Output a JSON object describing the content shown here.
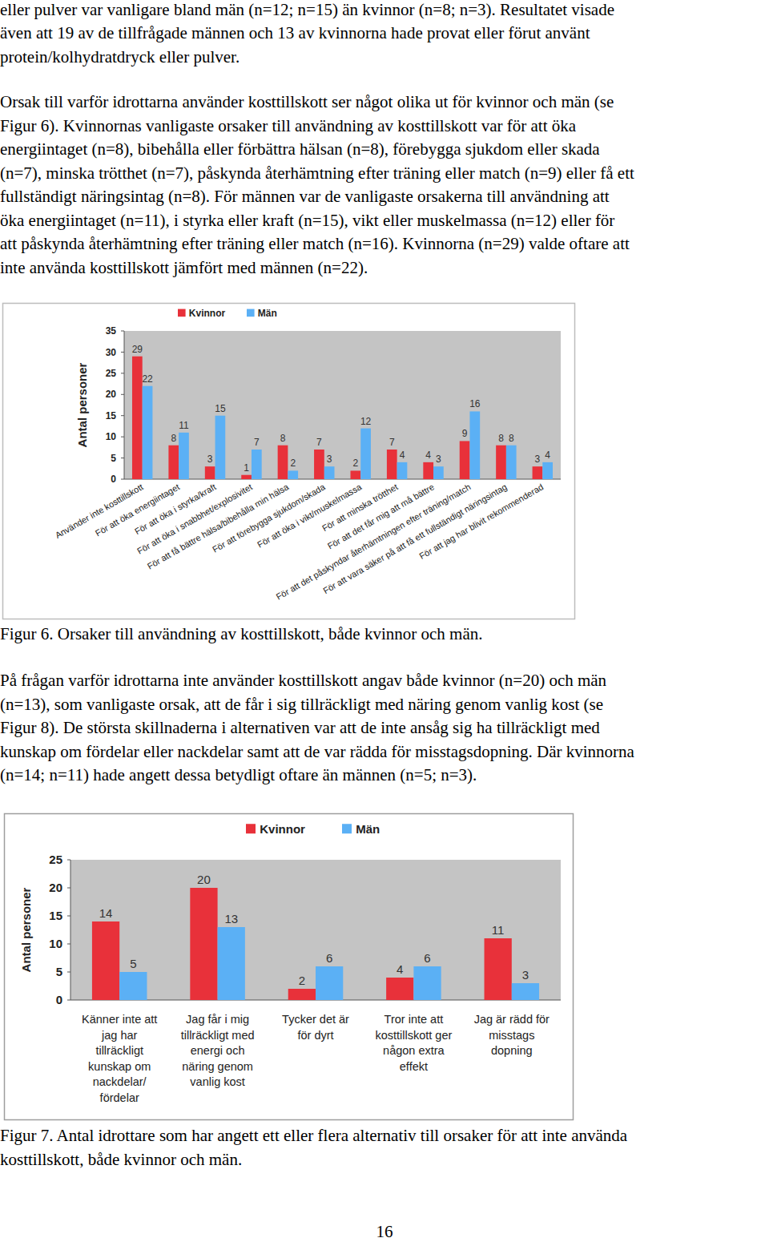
{
  "paragraphs": [
    [
      "eller pulver var vanligare bland män (n=12; n=15) än kvinnor (n=8; n=3). Resultatet visade",
      "även att 19 av de tillfrågade männen och 13 av kvinnorna hade provat eller förut använt",
      "protein/kolhydratdryck eller pulver."
    ],
    [
      "Orsak till varför idrottarna använder kosttillskott ser något olika ut för kvinnor och män (se",
      "Figur 6). Kvinnornas vanligaste orsaker till användning av kosttillskott var för att öka",
      "energiintaget (n=8), bibehålla eller förbättra hälsan (n=8), förebygga sjukdom eller skada",
      "(n=7), minska trötthet (n=7), påskynda återhämtning efter träning eller match (n=9) eller få ett",
      "fullständigt näringsintag (n=8). För männen var de vanligaste orsakerna till användning att",
      "öka energiintaget (n=11), i styrka eller kraft (n=15), vikt eller muskelmassa (n=12) eller för",
      "att påskynda återhämtning efter träning eller match (n=16). Kvinnorna (n=29) valde oftare att",
      "inte använda kosttillskott jämfört med männen (n=22)."
    ],
    [
      "På frågan varför idrottarna inte använder kosttillskott angav både kvinnor (n=20) och män",
      "(n=13), som vanligaste orsak, att de får i sig tillräckligt med näring genom vanlig kost (se",
      "Figur 8). De största skillnaderna i alternativen var att de inte ansåg sig ha tillräckligt med",
      "kunskap om fördelar eller nackdelar samt att de var rädda för misstagsdopning. Där kvinnorna",
      "(n=14; n=11) hade angett dessa betydligt oftare än männen (n=5; n=3)."
    ]
  ],
  "chart_data": [
    {
      "type": "bar",
      "categories": [
        "Använder inte kosttillskott",
        "För att öka energiintaget",
        "För att öka i styrka/kraft",
        "För att öka i snabbhet/explosivitet",
        "För att få bättre hälsa/bibehålla min hälsa",
        "För att förebygga sjukdom/skada",
        "För att öka i vikt/muskelmassa",
        "För att minska trötthet",
        "För att det får mig att må bättre",
        "För att det påskyndar återhämtningen efter träning/match",
        "För att vara säker på att få ett fullständigt näringsintag",
        "För att jag har blivit rekommenderad"
      ],
      "series": [
        {
          "name": "Kvinnor",
          "color": "#e8313a",
          "values": [
            29,
            8,
            3,
            1,
            8,
            7,
            2,
            7,
            4,
            9,
            8,
            3
          ]
        },
        {
          "name": "Män",
          "color": "#5bb0f5",
          "values": [
            22,
            11,
            15,
            7,
            2,
            3,
            12,
            4,
            3,
            16,
            8,
            4
          ]
        }
      ],
      "ylabel": "Antal personer",
      "ylim": [
        0,
        35
      ],
      "yticks": [
        0,
        5,
        10,
        15,
        20,
        25,
        30,
        35
      ],
      "grid": false,
      "legend": "top",
      "data_labels": true
    },
    {
      "type": "bar",
      "categories": [
        "Känner inte att\njag har\ntillräckligt\nkunskap om\nnackdelar/\nfördelar",
        "Jag får i mig\ntillräckligt med\nenergi och\nnäring genom\nvanlig kost",
        "Tycker det är\nför dyrt",
        "Tror inte att\nkosttillskott ger\nnågon extra\neffekt",
        "Jag är rädd för\nmisstags\ndopning"
      ],
      "series": [
        {
          "name": "Kvinnor",
          "color": "#e8313a",
          "values": [
            14,
            20,
            2,
            4,
            11
          ]
        },
        {
          "name": "Män",
          "color": "#5bb0f5",
          "values": [
            5,
            13,
            6,
            6,
            3
          ]
        }
      ],
      "ylabel": "Antal personer",
      "ylim": [
        0,
        25
      ],
      "yticks": [
        0,
        5,
        10,
        15,
        20,
        25
      ],
      "grid": false,
      "legend": "top",
      "data_labels": true
    }
  ],
  "captions": [
    [
      "Figur 6. Orsaker till användning av kosttillskott, både kvinnor och män."
    ],
    [
      "Figur 7. Antal idrottare som har angett ett eller flera alternativ till orsaker för att inte använda",
      "kosttillskott, både kvinnor och män."
    ]
  ],
  "page_number": "16"
}
